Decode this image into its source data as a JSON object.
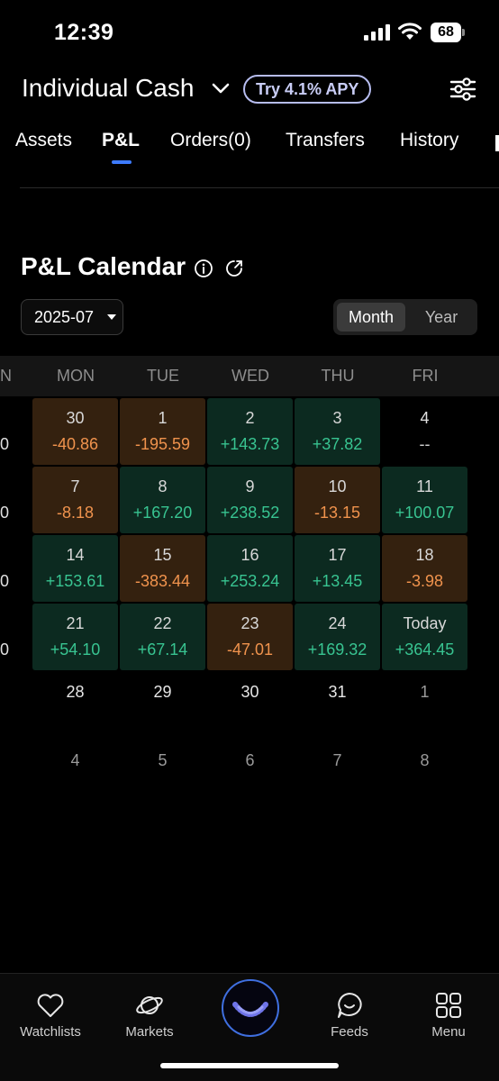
{
  "status": {
    "time": "12:39",
    "battery": "68"
  },
  "header": {
    "account_title": "Individual Cash",
    "apy_badge": "Try 4.1% APY"
  },
  "tabs": [
    {
      "label": "Assets",
      "active": false
    },
    {
      "label": "P&L",
      "active": true
    },
    {
      "label": "Orders(0)",
      "active": false
    },
    {
      "label": "Transfers",
      "active": false
    },
    {
      "label": "History",
      "active": false
    }
  ],
  "calendar": {
    "title": "P&L Calendar",
    "selected_month": "2025-07",
    "view_toggle": {
      "month": "Month",
      "year": "Year",
      "selected": "Month"
    },
    "weekdays": [
      "MON",
      "TUE",
      "WED",
      "THU",
      "FRI"
    ],
    "left_edge_weekday": "N",
    "week_left_values": [
      "0",
      "0",
      "0",
      "0"
    ],
    "weeks": [
      [
        {
          "day": "30",
          "pl": "-40.86",
          "kind": "loss"
        },
        {
          "day": "1",
          "pl": "-195.59",
          "kind": "loss"
        },
        {
          "day": "2",
          "pl": "+143.73",
          "kind": "gain"
        },
        {
          "day": "3",
          "pl": "+37.82",
          "kind": "gain"
        },
        {
          "day": "4",
          "pl": "--",
          "kind": "none"
        }
      ],
      [
        {
          "day": "7",
          "pl": "-8.18",
          "kind": "loss"
        },
        {
          "day": "8",
          "pl": "+167.20",
          "kind": "gain"
        },
        {
          "day": "9",
          "pl": "+238.52",
          "kind": "gain"
        },
        {
          "day": "10",
          "pl": "-13.15",
          "kind": "loss"
        },
        {
          "day": "11",
          "pl": "+100.07",
          "kind": "gain"
        }
      ],
      [
        {
          "day": "14",
          "pl": "+153.61",
          "kind": "gain"
        },
        {
          "day": "15",
          "pl": "-383.44",
          "kind": "loss"
        },
        {
          "day": "16",
          "pl": "+253.24",
          "kind": "gain"
        },
        {
          "day": "17",
          "pl": "+13.45",
          "kind": "gain"
        },
        {
          "day": "18",
          "pl": "-3.98",
          "kind": "loss"
        }
      ],
      [
        {
          "day": "21",
          "pl": "+54.10",
          "kind": "gain"
        },
        {
          "day": "22",
          "pl": "+67.14",
          "kind": "gain"
        },
        {
          "day": "23",
          "pl": "-47.01",
          "kind": "loss"
        },
        {
          "day": "24",
          "pl": "+169.32",
          "kind": "gain"
        },
        {
          "day": "Today",
          "pl": "+364.45",
          "kind": "gain"
        }
      ],
      [
        {
          "day": "28",
          "pl": "",
          "kind": "future"
        },
        {
          "day": "29",
          "pl": "",
          "kind": "future"
        },
        {
          "day": "30",
          "pl": "",
          "kind": "future"
        },
        {
          "day": "31",
          "pl": "",
          "kind": "future"
        },
        {
          "day": "1",
          "pl": "",
          "kind": "nextmonth"
        }
      ],
      [
        {
          "day": "4",
          "pl": "",
          "kind": "nextmonth"
        },
        {
          "day": "5",
          "pl": "",
          "kind": "nextmonth"
        },
        {
          "day": "6",
          "pl": "",
          "kind": "nextmonth"
        },
        {
          "day": "7",
          "pl": "",
          "kind": "nextmonth"
        },
        {
          "day": "8",
          "pl": "",
          "kind": "nextmonth"
        }
      ]
    ]
  },
  "bottom_nav": [
    {
      "label": "Watchlists",
      "icon": "heart-icon"
    },
    {
      "label": "Markets",
      "icon": "planet-icon"
    },
    {
      "label": "",
      "icon": "home-smile-icon"
    },
    {
      "label": "Feeds",
      "icon": "chat-smile-icon"
    },
    {
      "label": "Menu",
      "icon": "grid-icon"
    }
  ],
  "colors": {
    "gain": "#38c491",
    "loss": "#f0934d",
    "accent": "#3d7bff",
    "gain_bg": "#0c2a20",
    "loss_bg": "#34210f"
  }
}
